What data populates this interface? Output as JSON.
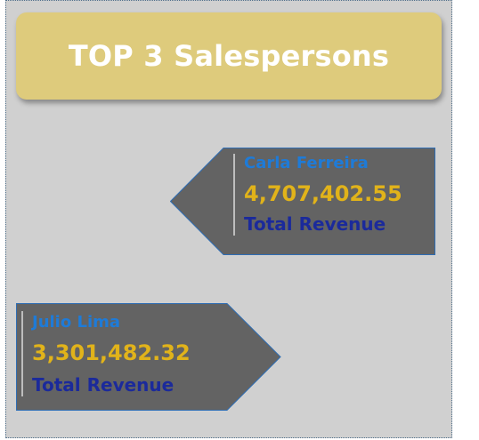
{
  "title": "TOP 3 Salespersons",
  "cards": [
    {
      "name": "Carla Ferreira",
      "value": "4,707,402.55",
      "metric": "Total Revenue",
      "arrow_direction": "left"
    },
    {
      "name": "Julio Lima",
      "value": "3,301,482.32",
      "metric": "Total Revenue",
      "arrow_direction": "right"
    }
  ],
  "colors": {
    "canvas_background": "#d0d0d0",
    "banner_background": "#decb7c",
    "banner_text": "#ffffff",
    "card_fill": "#636363",
    "card_border": "#2e6db4",
    "name_text": "#1e7bd8",
    "value_text": "#e1b31a",
    "metric_text": "#1b2a9b"
  }
}
